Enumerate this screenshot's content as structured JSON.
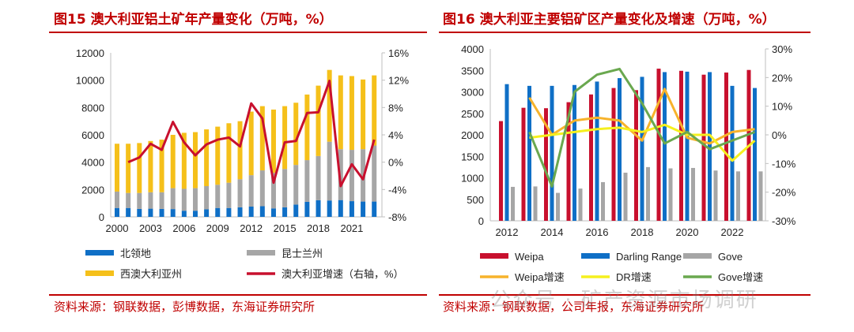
{
  "chart_data": [
    {
      "type": "bar+line",
      "title": "图15  澳大利亚铝土矿年产量变化（万吨，%）",
      "categories": [
        "2000",
        "2001",
        "2002",
        "2003",
        "2004",
        "2005",
        "2006",
        "2007",
        "2008",
        "2009",
        "2010",
        "2011",
        "2012",
        "2013",
        "2014",
        "2015",
        "2016",
        "2017",
        "2018",
        "2019",
        "2020",
        "2021",
        "2022",
        "2023"
      ],
      "x_tick_labels": [
        "2000",
        "2003",
        "2006",
        "2009",
        "2012",
        "2015",
        "2018",
        "2021"
      ],
      "stacked": true,
      "series": [
        {
          "name": "北领地",
          "type": "bar",
          "color": "#0f6fc6",
          "values": [
            650,
            650,
            580,
            600,
            580,
            570,
            450,
            450,
            550,
            650,
            650,
            700,
            750,
            780,
            620,
            700,
            900,
            1100,
            1220,
            1200,
            1230,
            1150,
            1120,
            1120
          ]
        },
        {
          "name": "昆士兰州",
          "type": "bar",
          "color": "#a6a6a6",
          "values": [
            1200,
            1100,
            1170,
            1200,
            1220,
            1530,
            1600,
            1650,
            1700,
            1700,
            1850,
            2050,
            2300,
            2620,
            2600,
            2800,
            2900,
            3050,
            3230,
            4300,
            3720,
            3750,
            3830,
            4100
          ]
        },
        {
          "name": "西澳大利亚州",
          "type": "bar",
          "color": "#f5c01a",
          "values": [
            3500,
            3600,
            3650,
            3750,
            3850,
            3900,
            4100,
            4100,
            4150,
            4250,
            4350,
            4250,
            4650,
            4700,
            4630,
            4600,
            4550,
            4800,
            5150,
            5250,
            5400,
            5400,
            5100,
            5130
          ]
        },
        {
          "name": "澳大利亚增速（右轴，%）",
          "type": "line",
          "axis": "right",
          "color": "#c8102e",
          "values": [
            null,
            0.0,
            0.7,
            2.7,
            1.8,
            5.9,
            2.9,
            1.0,
            2.6,
            3.3,
            3.6,
            2.3,
            8.6,
            6.4,
            -3.0,
            2.9,
            3.1,
            7.2,
            7.3,
            11.9,
            -3.5,
            -0.3,
            -2.5,
            3.3
          ]
        }
      ],
      "ylim": [
        0,
        12000
      ],
      "yticks": [
        "0",
        "2000",
        "4000",
        "6000",
        "8000",
        "10000",
        "12000"
      ],
      "y2lim": [
        -8,
        16
      ],
      "y2ticks": [
        "-8%",
        "-4%",
        "0%",
        "4%",
        "8%",
        "12%",
        "16%"
      ],
      "grid": false,
      "legend": "bottom",
      "source": "资料来源：钢联数据，彭博数据，东海证券研究所"
    },
    {
      "type": "bar+line",
      "title": "图16  澳大利亚主要铝矿区产量变化及增速（万吨，%）",
      "categories": [
        "2012",
        "2013",
        "2014",
        "2015",
        "2016",
        "2017",
        "2018",
        "2019",
        "2020",
        "2021",
        "2022",
        "2023"
      ],
      "x_tick_labels": [
        "2012",
        "2014",
        "2016",
        "2018",
        "2020",
        "2022"
      ],
      "stacked": false,
      "series": [
        {
          "name": "Weipa",
          "type": "bar",
          "color": "#c8102e",
          "values": [
            2320,
            2630,
            2620,
            2760,
            2940,
            3090,
            3040,
            3540,
            3490,
            3400,
            3450,
            3510
          ]
        },
        {
          "name": "Darling Range",
          "type": "bar",
          "color": "#0f6fc6",
          "values": [
            3180,
            3140,
            3140,
            3160,
            3240,
            3320,
            3350,
            3460,
            3470,
            3460,
            3140,
            3090
          ]
        },
        {
          "name": "Gove",
          "type": "bar",
          "color": "#a6a6a6",
          "values": [
            790,
            800,
            650,
            750,
            900,
            1120,
            1250,
            1220,
            1230,
            1170,
            1150,
            1150
          ]
        },
        {
          "name": "Weipa增速",
          "type": "line",
          "axis": "right",
          "color": "#f7b32b",
          "values": [
            null,
            13,
            0,
            5,
            6,
            5,
            -2,
            16,
            -1,
            -3,
            1,
            2
          ]
        },
        {
          "name": "DR增速",
          "type": "line",
          "axis": "right",
          "color": "#f5f01e",
          "values": [
            null,
            -1,
            0,
            1,
            2,
            2.5,
            1,
            3.5,
            0,
            0,
            -9,
            -2
          ]
        },
        {
          "name": "Gove增速",
          "type": "line",
          "axis": "right",
          "color": "#6aa84f",
          "values": [
            null,
            1,
            -18,
            15,
            21,
            23,
            11,
            -3,
            1,
            -5,
            -2,
            1
          ]
        }
      ],
      "ylim": [
        0,
        4000
      ],
      "yticks": [
        "0",
        "500",
        "1000",
        "1500",
        "2000",
        "2500",
        "3000",
        "3500",
        "4000"
      ],
      "y2lim": [
        -30,
        30
      ],
      "y2ticks": [
        "-30%",
        "-20%",
        "-10%",
        "0%",
        "10%",
        "20%",
        "30%"
      ],
      "grid": false,
      "legend": "bottom",
      "source": "资料来源：钢联数据，公司年报，东海证券研究所"
    }
  ],
  "watermark": "公众号 · 矿产资源市场调研"
}
